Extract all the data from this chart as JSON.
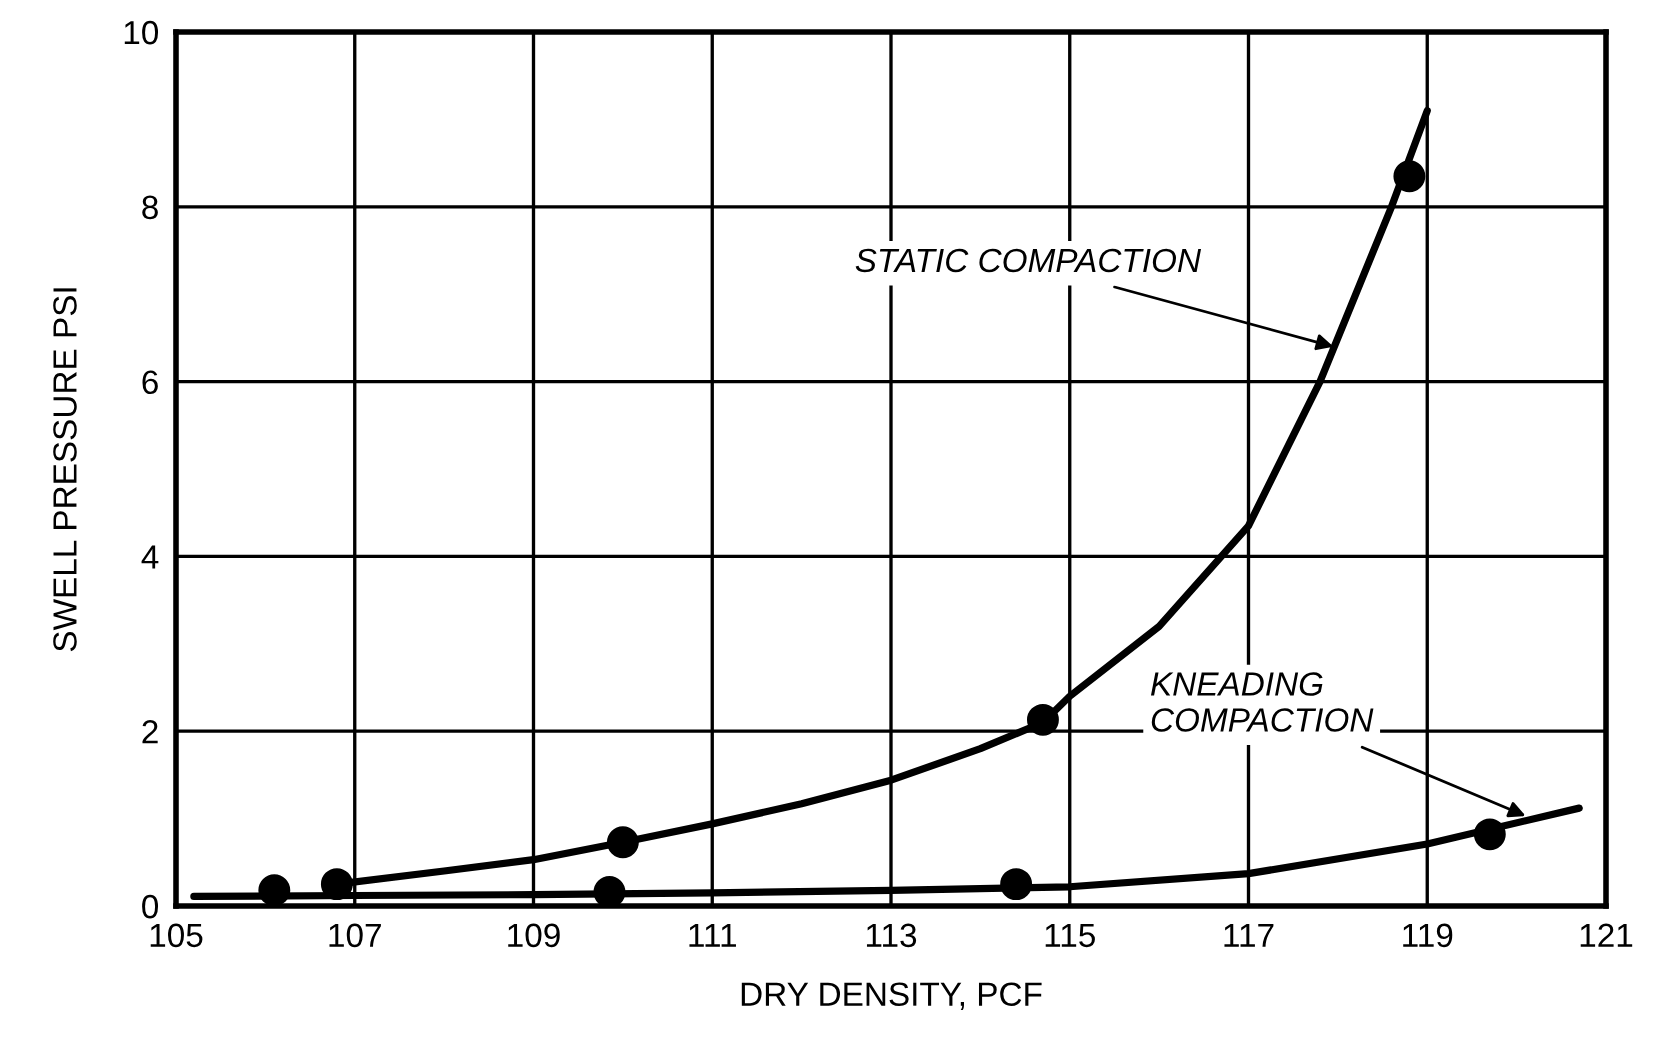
{
  "chart_data": {
    "type": "line",
    "xlabel": "DRY DENSITY, PCF",
    "ylabel": "SWELL PRESSURE PSI",
    "xlim": [
      105,
      121
    ],
    "xticks": [
      105,
      107,
      109,
      111,
      113,
      115,
      117,
      119,
      121
    ],
    "ylim": [
      0,
      10
    ],
    "yticks": [
      0,
      2,
      4,
      6,
      8,
      10
    ],
    "grid": true,
    "legend": false,
    "series": [
      {
        "color": "#000000",
        "marker": "none",
        "x": [
          106.8,
          108,
          109,
          110,
          111,
          112,
          113,
          114,
          114.7,
          115,
          116,
          117,
          117.8,
          118.6,
          119.0
        ],
        "values": [
          0.25,
          0.4,
          0.53,
          0.73,
          0.94,
          1.17,
          1.44,
          1.8,
          2.1,
          2.4,
          3.2,
          4.35,
          6.0,
          8.0,
          9.1
        ]
      },
      {
        "color": "#000000",
        "marker": "none",
        "x": [
          105.2,
          107,
          109,
          111,
          113,
          115,
          117,
          119,
          120.7
        ],
        "values": [
          0.11,
          0.12,
          0.13,
          0.15,
          0.18,
          0.22,
          0.37,
          0.71,
          1.12
        ]
      },
      {
        "type": "scatter",
        "color": "#000000",
        "marker": "circle",
        "x": [
          106.1,
          106.8,
          110.0,
          114.7,
          118.8
        ],
        "values": [
          0.18,
          0.25,
          0.73,
          2.13,
          8.35
        ]
      },
      {
        "type": "scatter",
        "color": "#000000",
        "marker": "circle",
        "x": [
          109.85,
          114.4,
          119.7
        ],
        "values": [
          0.16,
          0.25,
          0.82
        ]
      }
    ],
    "annotations": [
      {
        "text": "STATIC COMPACTION",
        "x": 117.95,
        "y": 6.4
      },
      {
        "text": "KNEADING\nCOMPACTION",
        "x": 120.1,
        "y": 1.03
      }
    ]
  }
}
